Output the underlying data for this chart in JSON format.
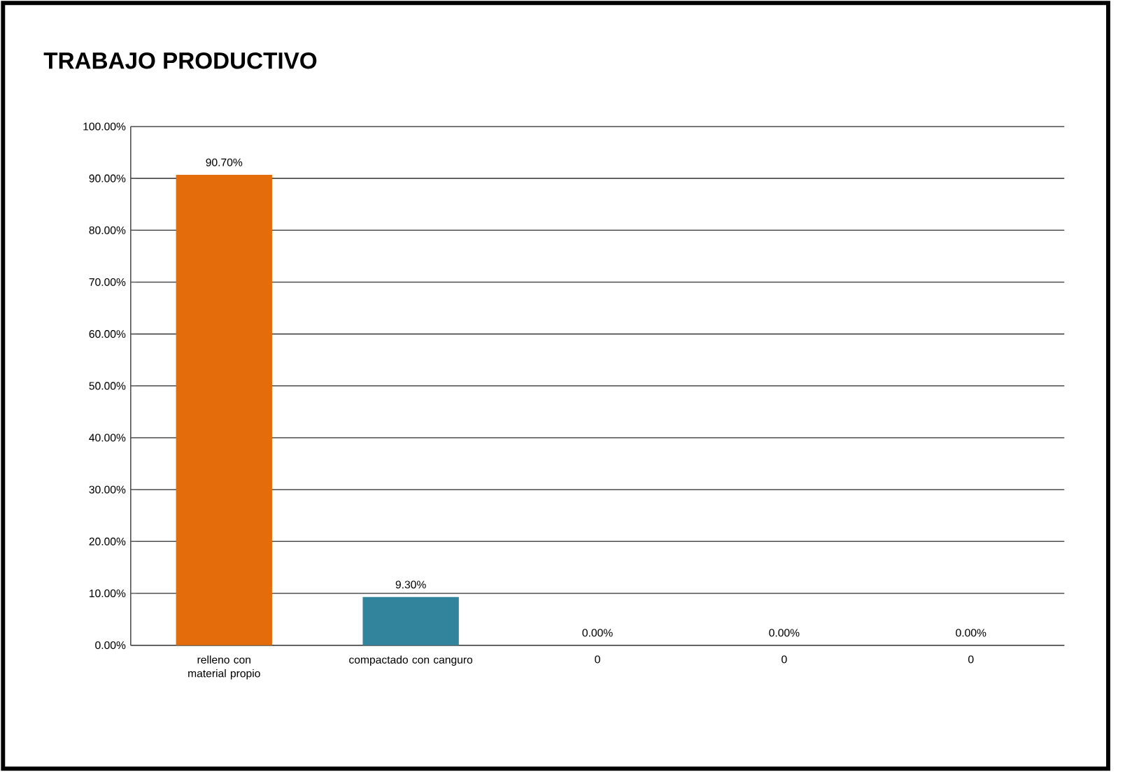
{
  "chart_data": {
    "type": "bar",
    "title": "TRABAJO PRODUCTIVO",
    "categories": [
      "relleno con material propio",
      "compactado con canguro",
      "0",
      "0",
      "0"
    ],
    "values": [
      90.7,
      9.3,
      0,
      0,
      0
    ],
    "colors": [
      "#e46c0a",
      "#31849b",
      "#4f81bd",
      "#4f81bd",
      "#4f81bd"
    ],
    "value_labels": [
      "90.70%",
      "9.30%",
      "0.00%",
      "0.00%",
      "0.00%"
    ],
    "ylim": [
      0,
      100
    ],
    "yticks": [
      {
        "value": 0,
        "label": "0.00%"
      },
      {
        "value": 10,
        "label": "10.00%"
      },
      {
        "value": 20,
        "label": "20.00%"
      },
      {
        "value": 30,
        "label": "30.00%"
      },
      {
        "value": 40,
        "label": "40.00%"
      },
      {
        "value": 50,
        "label": "50.00%"
      },
      {
        "value": 60,
        "label": "60.00%"
      },
      {
        "value": 70,
        "label": "70.00%"
      },
      {
        "value": 80,
        "label": "80.00%"
      },
      {
        "value": 90,
        "label": "90.00%"
      },
      {
        "value": 100,
        "label": "100.00%"
      }
    ],
    "grid": "y"
  }
}
